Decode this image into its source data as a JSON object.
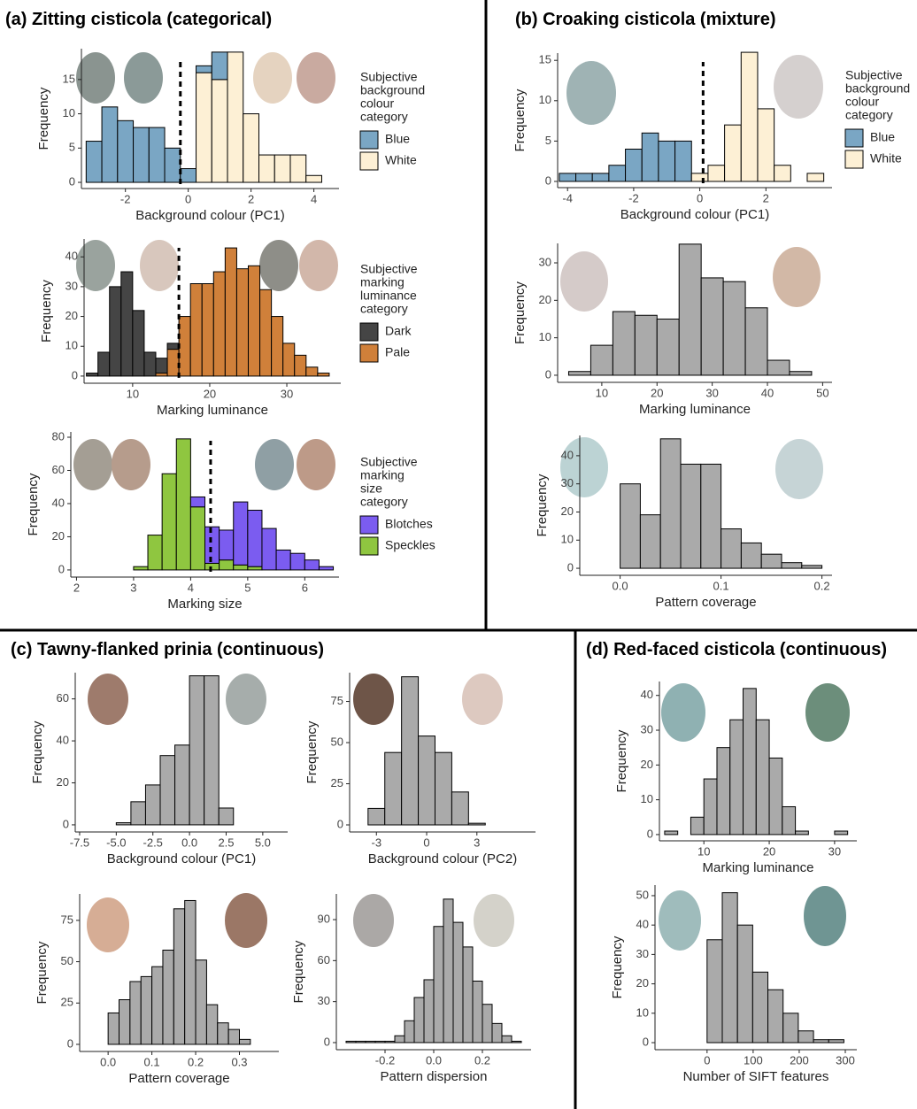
{
  "panel_titles": [
    "(a) Zitting cisticola (categorical)",
    "(b) Croaking cisticola (mixture)",
    "(c) Tawny-flanked prinia (continuous)",
    "(d) Red-faced cisticola (continuous)"
  ],
  "chart_data": [
    {
      "type": "histogram",
      "x_label": "Background colour (PC1)",
      "y_label": "Frequency",
      "legend_title": [
        "Subjective",
        "background",
        "colour",
        "category"
      ],
      "bins": [
        -3.25,
        -2.75,
        -2.25,
        -1.75,
        -1.25,
        -0.75,
        -0.25,
        0.25,
        0.75,
        1.25,
        1.75,
        2.25,
        2.75,
        3.25,
        3.75,
        4.25
      ],
      "series": [
        {
          "name": "Blue",
          "color": "#7aa6c4",
          "values": [
            6,
            11,
            9,
            8,
            8,
            5,
            2,
            1,
            4,
            0,
            0,
            0,
            0,
            0,
            0
          ]
        },
        {
          "name": "White",
          "color": "#fdf0d5",
          "values": [
            0,
            0,
            0,
            0,
            0,
            0,
            0,
            16,
            15,
            19,
            10,
            4,
            4,
            4,
            1
          ]
        }
      ],
      "xlim": [
        -3.4,
        4.8
      ],
      "ylim": [
        -0.9,
        19.5
      ],
      "xticks": [
        -2,
        0,
        2,
        4
      ],
      "yticks": [
        0,
        5,
        10,
        15
      ],
      "threshold": -0.25
    },
    {
      "type": "histogram",
      "x_label": "Marking luminance",
      "y_label": "Frequency",
      "legend_title": [
        "Subjective",
        "marking",
        "luminance",
        "category"
      ],
      "bins": [
        4,
        5.5,
        7,
        8.5,
        10,
        11.5,
        13,
        14.5,
        16,
        17.5,
        19,
        20.5,
        22,
        23.5,
        25,
        26.5,
        28,
        29.5,
        31,
        32.5,
        34,
        35.5
      ],
      "series": [
        {
          "name": "Dark",
          "color": "#454545",
          "values": [
            1,
            8,
            30,
            35,
            22,
            8,
            5,
            2,
            0,
            0,
            0,
            0,
            0,
            0,
            0,
            0,
            0,
            0,
            0,
            0,
            0
          ]
        },
        {
          "name": "Pale",
          "color": "#d0803a",
          "values": [
            0,
            0,
            0,
            0,
            0,
            0,
            1,
            9,
            20,
            31,
            31,
            35,
            43,
            36,
            37,
            29,
            20,
            11,
            7,
            3,
            1
          ]
        }
      ],
      "xlim": [
        3.7,
        37
      ],
      "ylim": [
        -2.4,
        46
      ],
      "xticks": [
        10,
        20,
        30
      ],
      "yticks": [
        0,
        10,
        20,
        30,
        40
      ],
      "threshold": 16
    },
    {
      "type": "histogram",
      "x_label": "Marking size",
      "y_label": "Frequency",
      "legend_title": [
        "Subjective",
        "marking",
        "size",
        "category"
      ],
      "bins": [
        3,
        3.25,
        3.5,
        3.75,
        4,
        4.25,
        4.5,
        4.75,
        5,
        5.25,
        5.5,
        5.75,
        6,
        6.25,
        6.5
      ],
      "series": [
        {
          "name": "Blotches",
          "color": "#7b5cf0",
          "values": [
            0,
            0,
            0,
            0,
            6,
            22,
            18,
            38,
            34,
            25,
            12,
            10,
            6,
            2
          ]
        },
        {
          "name": "Speckles",
          "color": "#8fc640",
          "values": [
            2,
            21,
            58,
            79,
            38,
            4,
            6,
            3,
            2,
            0,
            0,
            0,
            0,
            0
          ]
        }
      ],
      "xlim": [
        1.9,
        6.6
      ],
      "ylim": [
        -4.3,
        83.2
      ],
      "xticks": [
        2,
        3,
        4,
        5,
        6
      ],
      "yticks": [
        0,
        20,
        40,
        60,
        80
      ],
      "threshold": 4.35
    },
    {
      "type": "histogram",
      "x_label": "Background colour (PC1)",
      "y_label": "Frequency",
      "legend_title": [
        "Subjective",
        "background",
        "colour",
        "category"
      ],
      "bins": [
        -4.25,
        -3.75,
        -3.25,
        -2.75,
        -2.25,
        -1.75,
        -1.25,
        -0.75,
        -0.25,
        0.25,
        0.75,
        1.25,
        1.75,
        2.25,
        2.75,
        3.25,
        3.75
      ],
      "series": [
        {
          "name": "Blue",
          "color": "#7aa6c4",
          "values": [
            1,
            1,
            1,
            2,
            4,
            6,
            5,
            5,
            0,
            0,
            0,
            0,
            0,
            0,
            0,
            0
          ]
        },
        {
          "name": "White",
          "color": "#fdf0d5",
          "values": [
            0,
            0,
            0,
            0,
            0,
            0,
            0,
            0,
            1,
            2,
            7,
            16,
            9,
            2,
            0,
            1
          ]
        }
      ],
      "xlim": [
        -4.3,
        4.0
      ],
      "ylim": [
        -0.77,
        15.9
      ],
      "xticks": [
        -4,
        -2,
        0,
        2
      ],
      "yticks": [
        0,
        5,
        10,
        15
      ],
      "threshold": 0.1
    },
    {
      "type": "histogram",
      "x_label": "Marking luminance",
      "y_label": "Frequency",
      "color": "#aaaaaa",
      "bins": [
        4,
        8,
        12,
        16,
        20,
        24,
        28,
        32,
        36,
        40,
        44,
        48
      ],
      "values": [
        1,
        8,
        17,
        16,
        15,
        35,
        26,
        25,
        18,
        4,
        1
      ],
      "xlim": [
        2,
        51.7
      ],
      "ylim": [
        -1.9,
        35.2
      ],
      "xticks": [
        10,
        20,
        30,
        40,
        50
      ],
      "yticks": [
        0,
        10,
        20,
        30
      ]
    },
    {
      "type": "histogram",
      "x_label": "Pattern coverage",
      "y_label": "Frequency",
      "color": "#aaaaaa",
      "bins": [
        0,
        0.02,
        0.04,
        0.06,
        0.08,
        0.1,
        0.12,
        0.14,
        0.16,
        0.18,
        0.2
      ],
      "values": [
        30,
        19,
        46,
        37,
        37,
        14,
        9,
        5,
        2,
        1
      ],
      "xlim": [
        -0.04,
        0.21
      ],
      "ylim": [
        -2.5,
        47.2
      ],
      "xticks": [
        {
          "value": 0,
          "label": "0.0"
        },
        0.1,
        0.2
      ],
      "yticks": [
        0,
        10,
        20,
        30,
        40
      ]
    },
    {
      "type": "histogram",
      "x_label": "Background colour (PC1)",
      "y_label": "Frequency",
      "color": "#aaaaaa",
      "bins": [
        -5,
        -4,
        -3,
        -2,
        -1,
        0,
        1,
        2,
        3
      ],
      "values": [
        1,
        11,
        19,
        33,
        38,
        71,
        71,
        8
      ],
      "xlim": [
        -7.8,
        6.7
      ],
      "ylim": [
        -3.4,
        72.5
      ],
      "xticks": [
        -7.5,
        {
          "value": -5,
          "label": "-5.0"
        },
        -2.5,
        {
          "value": 0,
          "label": "0.0"
        },
        2.5,
        {
          "value": 5,
          "label": "5.0"
        }
      ],
      "yticks": [
        0,
        20,
        40,
        60
      ]
    },
    {
      "type": "histogram",
      "x_label": "Background colour (PC2)",
      "y_label": "Frequency",
      "color": "#aaaaaa",
      "bins": [
        -3.5,
        -2.5,
        -1.5,
        -0.5,
        0.5,
        1.5,
        2.5,
        3.5
      ],
      "values": [
        10,
        44,
        90,
        54,
        44,
        20,
        1
      ],
      "xlim": [
        -4.6,
        6.5
      ],
      "ylim": [
        -4.3,
        92.5
      ],
      "xticks": [
        -3,
        0,
        3
      ],
      "yticks": [
        0,
        25,
        50,
        75
      ]
    },
    {
      "type": "histogram",
      "x_label": "Pattern coverage",
      "y_label": "Frequency",
      "color": "#aaaaaa",
      "bins": [
        0,
        0.025,
        0.05,
        0.075,
        0.1,
        0.125,
        0.15,
        0.175,
        0.2,
        0.225,
        0.25,
        0.275,
        0.3,
        0.325
      ],
      "values": [
        19,
        27,
        38,
        41,
        47,
        57,
        82,
        87,
        51,
        24,
        13,
        9,
        3
      ],
      "xlim": [
        -0.065,
        0.39
      ],
      "ylim": [
        -4.3,
        91
      ],
      "xticks": [
        {
          "value": 0,
          "label": "0.0"
        },
        0.1,
        0.2,
        0.3
      ],
      "yticks": [
        0,
        25,
        50,
        75
      ]
    },
    {
      "type": "histogram",
      "x_label": "Pattern dispersion",
      "y_label": "Frequency",
      "color": "#aaaaaa",
      "bins": [
        -0.36,
        -0.32,
        -0.28,
        -0.24,
        -0.2,
        -0.16,
        -0.12,
        -0.08,
        -0.04,
        0,
        0.04,
        0.08,
        0.12,
        0.16,
        0.2,
        0.24,
        0.28,
        0.32,
        0.36
      ],
      "values": [
        1,
        1,
        1,
        1,
        1,
        5,
        16,
        33,
        46,
        85,
        105,
        88,
        70,
        45,
        28,
        14,
        5,
        1
      ],
      "xlim": [
        -0.4,
        0.4
      ],
      "ylim": [
        -5.2,
        108.8
      ],
      "xticks": [
        -0.2,
        {
          "value": 0,
          "label": "0.0"
        },
        0.2
      ],
      "yticks": [
        0,
        30,
        60,
        90
      ]
    },
    {
      "type": "histogram",
      "x_label": "Marking luminance",
      "y_label": "Frequency",
      "color": "#aaaaaa",
      "bins": [
        4,
        6,
        8,
        10,
        12,
        14,
        16,
        18,
        20,
        22,
        24,
        26,
        28,
        30,
        32
      ],
      "values": [
        1,
        0,
        5,
        16,
        25,
        33,
        42,
        33,
        22,
        8,
        1,
        0,
        0,
        1
      ],
      "xlim": [
        3.2,
        33.4
      ],
      "ylim": [
        -1.8,
        44
      ],
      "xticks": [
        10,
        20,
        30
      ],
      "yticks": [
        0,
        10,
        20,
        30,
        40
      ]
    },
    {
      "type": "histogram",
      "x_label": "Number of SIFT features",
      "y_label": "Frequency",
      "color": "#aaaaaa",
      "bins": [
        0,
        33,
        66,
        99,
        132,
        165,
        198,
        231,
        264,
        297
      ],
      "values": [
        35,
        51,
        40,
        24,
        18,
        10,
        4,
        1,
        1
      ],
      "xlim": [
        -113,
        325
      ],
      "ylim": [
        -2.4,
        53.6
      ],
      "xticks": [
        0,
        100,
        200,
        300
      ],
      "yticks": [
        0,
        10,
        20,
        30,
        40,
        50
      ]
    }
  ]
}
